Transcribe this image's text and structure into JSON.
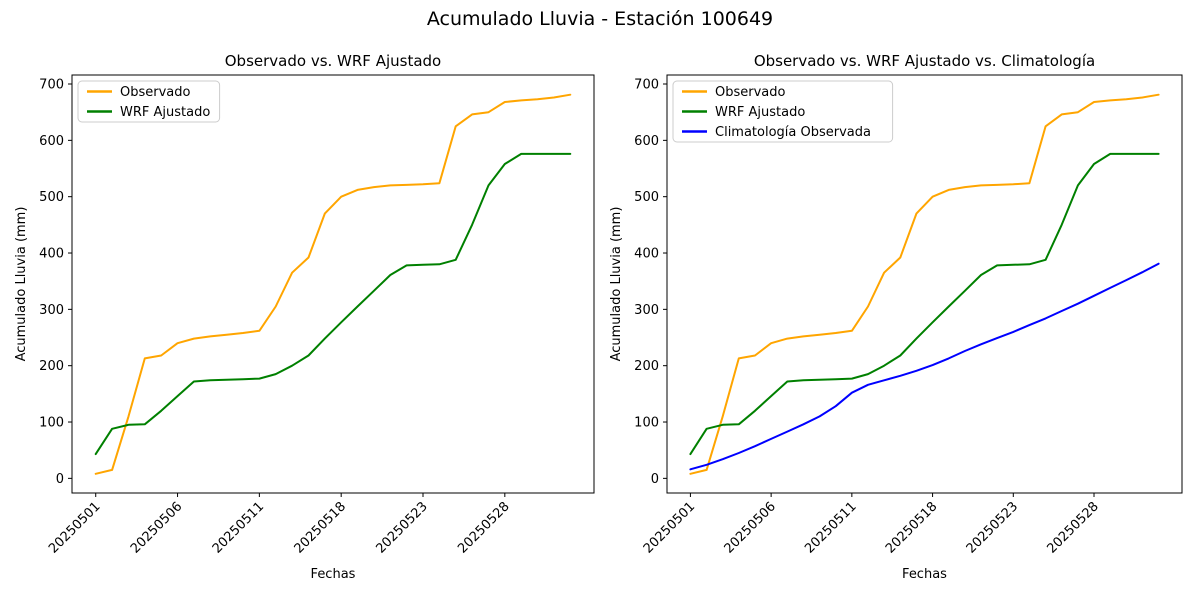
{
  "figure_title": "Acumulado Lluvia - Estación 100649",
  "chart_data": [
    {
      "type": "line",
      "title": "Observado vs. WRF Ajustado",
      "xlabel": "Fechas",
      "ylabel": "Acumulado Lluvia (mm)",
      "ylim": [
        -26,
        716
      ],
      "yticks": [
        0,
        100,
        200,
        300,
        400,
        500,
        600,
        700
      ],
      "x_count": 30,
      "xtick_positions": [
        0,
        5,
        10,
        15,
        20,
        25
      ],
      "xtick_labels": [
        "20250501",
        "20250506",
        "20250511",
        "20250518",
        "20250523",
        "20250528"
      ],
      "grid": false,
      "legend_position": "upper-left",
      "series": [
        {
          "name": "Observado",
          "color": "#FFA500",
          "values": [
            8,
            15,
            110,
            213,
            218,
            240,
            248,
            252,
            255,
            258,
            262,
            305,
            365,
            392,
            470,
            500,
            512,
            517,
            520,
            521,
            522,
            524,
            625,
            646,
            650,
            668,
            671,
            673,
            676,
            681
          ]
        },
        {
          "name": "WRF Ajustado",
          "color": "#008000",
          "values": [
            43,
            88,
            95,
            96,
            120,
            146,
            172,
            174,
            175,
            176,
            177,
            185,
            200,
            218,
            248,
            277,
            305,
            333,
            361,
            378,
            379,
            380,
            388,
            450,
            520,
            558,
            576,
            576,
            576,
            576
          ]
        }
      ]
    },
    {
      "type": "line",
      "title": "Observado vs. WRF Ajustado vs. Climatología",
      "xlabel": "Fechas",
      "ylabel": "Acumulado Lluvia (mm)",
      "ylim": [
        -26,
        716
      ],
      "yticks": [
        0,
        100,
        200,
        300,
        400,
        500,
        600,
        700
      ],
      "x_count": 30,
      "xtick_positions": [
        0,
        5,
        10,
        15,
        20,
        25
      ],
      "xtick_labels": [
        "20250501",
        "20250506",
        "20250511",
        "20250518",
        "20250523",
        "20250528"
      ],
      "grid": false,
      "legend_position": "upper-left",
      "series": [
        {
          "name": "Observado",
          "color": "#FFA500",
          "values": [
            8,
            15,
            110,
            213,
            218,
            240,
            248,
            252,
            255,
            258,
            262,
            305,
            365,
            392,
            470,
            500,
            512,
            517,
            520,
            521,
            522,
            524,
            625,
            646,
            650,
            668,
            671,
            673,
            676,
            681
          ]
        },
        {
          "name": "WRF Ajustado",
          "color": "#008000",
          "values": [
            43,
            88,
            95,
            96,
            120,
            146,
            172,
            174,
            175,
            176,
            177,
            185,
            200,
            218,
            248,
            277,
            305,
            333,
            361,
            378,
            379,
            380,
            388,
            450,
            520,
            558,
            576,
            576,
            576,
            576
          ]
        },
        {
          "name": "Climatología Observada",
          "color": "#0000FF",
          "values": [
            16,
            24,
            34,
            45,
            57,
            70,
            83,
            96,
            110,
            128,
            152,
            166,
            174,
            182,
            191,
            201,
            213,
            226,
            238,
            249,
            260,
            272,
            284,
            297,
            310,
            324,
            338,
            352,
            366,
            381
          ]
        }
      ]
    }
  ]
}
